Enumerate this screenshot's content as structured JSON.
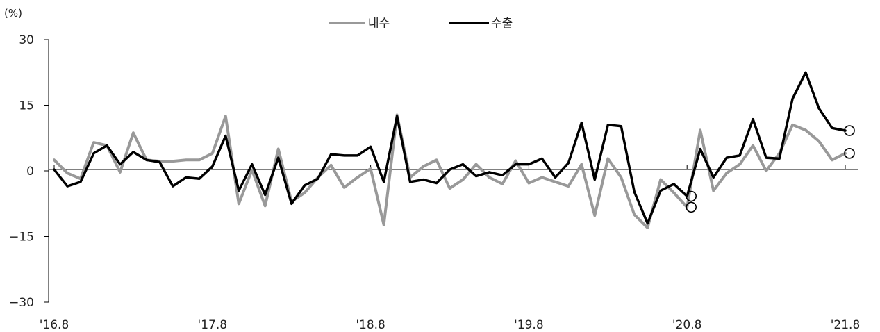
{
  "chart_data": {
    "type": "line",
    "unit_label": "(%)",
    "ylim": [
      -30,
      30
    ],
    "yticks": [
      30,
      15,
      0,
      -15,
      -30
    ],
    "ytick_labels": [
      "30",
      "15",
      "0",
      "−15",
      "−30"
    ],
    "x_tick_labels": [
      "'16.8",
      "'17.8",
      "'18.8",
      "'19.8",
      "'20.8",
      "'21.8"
    ],
    "x_tick_index": [
      0,
      12,
      24,
      36,
      48,
      60
    ],
    "legend_position": "top-center",
    "grid": false,
    "series": [
      {
        "name": "내수",
        "color": "#999999",
        "values": [
          2.5,
          -0.5,
          -1.8,
          6.5,
          5.8,
          -0.3,
          8.7,
          2.5,
          2.2,
          2.2,
          2.5,
          2.5,
          4.0,
          12.5,
          -7.5,
          0.2,
          -8.0,
          5.0,
          -7.0,
          -5.0,
          -1.5,
          1.3,
          -3.8,
          -1.5,
          0.5,
          -12.3,
          12.8,
          -1.5,
          1.0,
          2.5,
          -4.0,
          -2.0,
          1.5,
          -1.5,
          -3.0,
          2.3,
          -2.8,
          -1.5,
          -2.5,
          -3.5,
          1.5,
          -10.2,
          2.8,
          -1.5,
          -10.0,
          -13.0,
          -2.0,
          -5.0,
          -8.3,
          9.3,
          -4.5,
          -0.5,
          1.5,
          5.8,
          0.0,
          4.0,
          10.5,
          9.3,
          6.8,
          2.5,
          4.0
        ]
      },
      {
        "name": "수출",
        "color": "#000000",
        "values": [
          0.3,
          -3.5,
          -2.5,
          4.0,
          5.8,
          1.5,
          4.3,
          2.5,
          2.0,
          -3.5,
          -1.5,
          -1.8,
          1.0,
          8.0,
          -4.5,
          1.5,
          -5.5,
          3.0,
          -7.5,
          -3.3,
          -1.8,
          3.8,
          3.5,
          3.5,
          5.5,
          -2.5,
          12.5,
          -2.5,
          -2.0,
          -2.8,
          0.3,
          1.5,
          -1.2,
          -0.3,
          -1.0,
          1.5,
          1.5,
          2.8,
          -1.5,
          1.8,
          11.0,
          -2.0,
          10.5,
          10.2,
          -4.8,
          -12.0,
          -4.5,
          -3.0,
          -5.8,
          5.0,
          -1.5,
          3.0,
          3.5,
          11.8,
          3.0,
          2.8,
          16.5,
          22.5,
          14.3,
          9.8,
          9.2
        ]
      }
    ],
    "annotations": [
      {
        "type": "circle-marker",
        "series": "내수",
        "index": 48,
        "value": -8.3
      },
      {
        "type": "circle-marker",
        "series": "수출",
        "index": 48,
        "value": -5.8
      },
      {
        "type": "circle-marker",
        "series": "수출",
        "index": 60,
        "value": 9.2
      },
      {
        "type": "circle-marker",
        "series": "내수",
        "index": 60,
        "value": 4.0
      }
    ]
  }
}
